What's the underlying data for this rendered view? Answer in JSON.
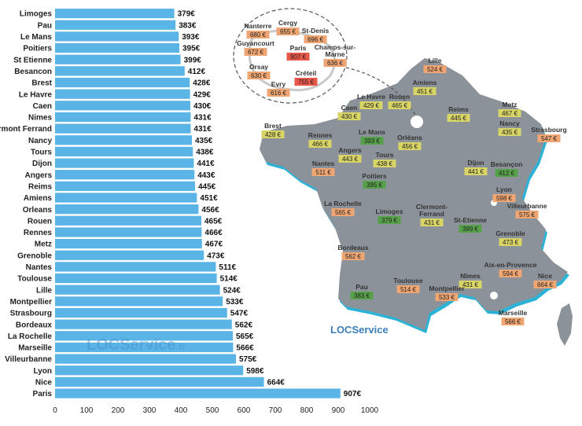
{
  "chart_data": {
    "type": "bar",
    "orientation": "horizontal",
    "categories": [
      "Limoges",
      "Pau",
      "Le Mans",
      "Poitiers",
      "St Etienne",
      "Besancon",
      "Brest",
      "Le Havre",
      "Caen",
      "Nimes",
      "Clermont Ferrand",
      "Nancy",
      "Tours",
      "Dijon",
      "Angers",
      "Reims",
      "Amiens",
      "Orleans",
      "Rouen",
      "Rennes",
      "Metz",
      "Grenoble",
      "Nantes",
      "Toulouse",
      "Lille",
      "Montpellier",
      "Strasbourg",
      "Bordeaux",
      "La Rochelle",
      "Marseille",
      "Villeurbanne",
      "Lyon",
      "Nice",
      "Paris"
    ],
    "values": [
      379,
      383,
      393,
      395,
      399,
      412,
      428,
      429,
      430,
      431,
      431,
      435,
      438,
      441,
      443,
      445,
      451,
      456,
      465,
      466,
      467,
      473,
      511,
      514,
      524,
      533,
      547,
      562,
      565,
      566,
      575,
      598,
      664,
      907
    ],
    "value_labels": [
      "379€",
      "383€",
      "393€",
      "395€",
      "399€",
      "412€",
      "428€",
      "429€",
      "430€",
      "431€",
      "431€",
      "435€",
      "438€",
      "441€",
      "443€",
      "445€",
      "451€",
      "456€",
      "465€",
      "466€",
      "467€",
      "473€",
      "511€",
      "514€",
      "524€",
      "533€",
      "547€",
      "562€",
      "565€",
      "566€",
      "575€",
      "598€",
      "664€",
      "907€"
    ],
    "xticks": [
      0,
      100,
      200,
      300,
      400,
      500,
      600,
      700,
      800,
      900,
      1000
    ],
    "xlim": [
      0,
      1000
    ],
    "bar_color": "#5ab4e6",
    "title": "",
    "xlabel": "",
    "ylabel": ""
  },
  "map": {
    "colors": {
      "land": "#8c9299",
      "sea_edge": "#2ab3d6",
      "green": "#56a04a",
      "yellow": "#d9d466",
      "orange": "#f0a672",
      "red": "#e8574a"
    },
    "cities": [
      {
        "name": "Lille",
        "value": "524 €",
        "level": "orange"
      },
      {
        "name": "Amiens",
        "value": "451 €",
        "level": "yellow"
      },
      {
        "name": "Le Havre",
        "value": "429 €",
        "level": "yellow"
      },
      {
        "name": "Rouen",
        "value": "465 €",
        "level": "yellow"
      },
      {
        "name": "Caen",
        "value": "430 €",
        "level": "yellow"
      },
      {
        "name": "Reims",
        "value": "445 €",
        "level": "yellow"
      },
      {
        "name": "Metz",
        "value": "467 €",
        "level": "yellow"
      },
      {
        "name": "Nancy",
        "value": "435 €",
        "level": "yellow"
      },
      {
        "name": "Strasbourg",
        "value": "547 €",
        "level": "orange"
      },
      {
        "name": "Brest",
        "value": "428 €",
        "level": "yellow"
      },
      {
        "name": "Rennes",
        "value": "466 €",
        "level": "yellow"
      },
      {
        "name": "Le Mans",
        "value": "393 €",
        "level": "green"
      },
      {
        "name": "Orléans",
        "value": "456 €",
        "level": "yellow"
      },
      {
        "name": "Angers",
        "value": "443 €",
        "level": "yellow"
      },
      {
        "name": "Tours",
        "value": "438 €",
        "level": "yellow"
      },
      {
        "name": "Nantes",
        "value": "511 €",
        "level": "orange"
      },
      {
        "name": "Poitiers",
        "value": "395 €",
        "level": "green"
      },
      {
        "name": "Dijon",
        "value": "441 €",
        "level": "yellow"
      },
      {
        "name": "Besançon",
        "value": "412 €",
        "level": "green"
      },
      {
        "name": "Lyon",
        "value": "598 €",
        "level": "orange"
      },
      {
        "name": "Villeurbanne",
        "value": "575 €",
        "level": "orange"
      },
      {
        "name": "La Rochelle",
        "value": "565 €",
        "level": "orange"
      },
      {
        "name": "Limoges",
        "value": "379 €",
        "level": "green"
      },
      {
        "name": "Clermont-\nFerrand",
        "value": "431 €",
        "level": "yellow"
      },
      {
        "name": "St-Etienne",
        "value": "399 €",
        "level": "green"
      },
      {
        "name": "Grenoble",
        "value": "473 €",
        "level": "yellow"
      },
      {
        "name": "Bordeaux",
        "value": "562 €",
        "level": "orange"
      },
      {
        "name": "Aix-en-Provence",
        "value": "594 €",
        "level": "orange"
      },
      {
        "name": "Nîmes",
        "value": "431 €",
        "level": "yellow"
      },
      {
        "name": "Nice",
        "value": "664 €",
        "level": "orange"
      },
      {
        "name": "Pau",
        "value": "383 €",
        "level": "green"
      },
      {
        "name": "Toulouse",
        "value": "514 €",
        "level": "orange"
      },
      {
        "name": "Montpellier",
        "value": "533 €",
        "level": "orange"
      },
      {
        "name": "Marseille",
        "value": "566 €",
        "level": "orange"
      }
    ],
    "inset_cities": [
      {
        "name": "Nanterre",
        "value": "680 €",
        "level": "orange"
      },
      {
        "name": "Cergy",
        "value": "655 €",
        "level": "orange"
      },
      {
        "name": "St-Denis",
        "value": "696 €",
        "level": "orange"
      },
      {
        "name": "Guyancourt",
        "value": "672 €",
        "level": "orange"
      },
      {
        "name": "Paris",
        "value": "907 €",
        "level": "red"
      },
      {
        "name": "Champs-sur-\nMarne",
        "value": "636 €",
        "level": "orange"
      },
      {
        "name": "Orsay",
        "value": "630 €",
        "level": "orange"
      },
      {
        "name": "Créteil",
        "value": "755 €",
        "level": "red"
      },
      {
        "name": "Evry",
        "value": "616 €",
        "level": "orange"
      }
    ]
  },
  "watermarks": {
    "chart_logo": "LOCService",
    "chart_logo_suffix": ".fr",
    "map_logo": "LOCService"
  }
}
